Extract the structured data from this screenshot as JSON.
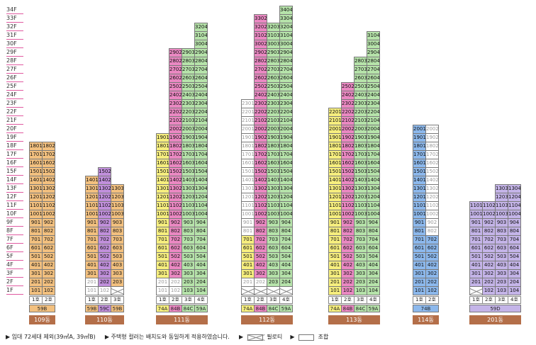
{
  "floors": [
    "1F",
    "2F",
    "3F",
    "4F",
    "5F",
    "6F",
    "7F",
    "8F",
    "9F",
    "10F",
    "11F",
    "12F",
    "13F",
    "14F",
    "15F",
    "16F",
    "17F",
    "18F",
    "19F",
    "20F",
    "21F",
    "22F",
    "23F",
    "24F",
    "25F",
    "26F",
    "27F",
    "28F",
    "29F",
    "30F",
    "31F",
    "32F",
    "33F",
    "34F"
  ],
  "colors": {
    "orange": "#f2c07f",
    "yellow": "#f6ee7e",
    "purple": "#c08fdb",
    "green": "#b6e3aa",
    "pink": "#ea88c2",
    "lavender": "#c4b4e8",
    "blue": "#8cb8ec",
    "white": "#ffffff",
    "building_label": "#b46f49"
  },
  "buildings": [
    {
      "name": "109동",
      "col_labels": [
        "1호",
        "2호"
      ],
      "lines": [
        {
          "color": "orange",
          "top": 18,
          "pilotis": []
        },
        {
          "color": "orange",
          "top": 18,
          "pilotis": []
        }
      ],
      "types": [
        {
          "label": "59B",
          "color": "orange",
          "span": 2
        }
      ]
    },
    {
      "name": "110동",
      "col_labels": [
        "1호",
        "2호",
        "3호"
      ],
      "lines": [
        {
          "color": "orange",
          "top": 14,
          "pilotis": [],
          "dim": [
            1,
            2
          ]
        },
        {
          "color": "purple",
          "top": 15,
          "pilotis": [],
          "dim": [
            1
          ]
        },
        {
          "color": "orange",
          "top": 13,
          "pilotis": [
            1
          ],
          "dim": []
        }
      ],
      "types": [
        {
          "label": "59B",
          "color": "orange",
          "span": 1
        },
        {
          "label": "59C",
          "color": "purple",
          "span": 1
        },
        {
          "label": "59B",
          "color": "orange",
          "span": 1
        }
      ]
    },
    {
      "name": "111동",
      "col_labels": [
        "1호",
        "2호",
        "3호",
        "4호"
      ],
      "lines": [
        {
          "color": "yellow",
          "top": 19,
          "pilotis": [],
          "dim": [
            1,
            2
          ]
        },
        {
          "color": "pink",
          "top": 29,
          "pilotis": [],
          "dim": [
            1,
            2
          ]
        },
        {
          "color": "green",
          "top": 29,
          "pilotis": [],
          "dim": []
        },
        {
          "color": "green",
          "top": 32,
          "pilotis": [],
          "dim": []
        }
      ],
      "types": [
        {
          "label": "74A",
          "color": "yellow",
          "span": 1
        },
        {
          "label": "84B",
          "color": "pink",
          "span": 1
        },
        {
          "label": "84C",
          "color": "green",
          "span": 1
        },
        {
          "label": "59A",
          "color": "green",
          "span": 1
        }
      ]
    },
    {
      "name": "112동",
      "col_labels": [
        "1호",
        "2호",
        "3호",
        "4호"
      ],
      "lines": [
        {
          "color": "yellow",
          "top": 23,
          "pilotis": [
            1
          ],
          "dim": [
            2,
            8,
            9,
            10,
            11,
            12,
            13,
            14,
            15,
            16,
            17,
            18,
            19,
            20,
            21,
            22,
            23
          ]
        },
        {
          "color": "pink",
          "top": 33,
          "pilotis": [
            1
          ],
          "dim": [
            2
          ]
        },
        {
          "color": "green",
          "top": 32,
          "pilotis": [
            1
          ],
          "dim": []
        },
        {
          "color": "green",
          "top": 34,
          "pilotis": [
            1
          ],
          "dim": []
        }
      ],
      "types": [
        {
          "label": "74A",
          "color": "yellow",
          "span": 1
        },
        {
          "label": "84B",
          "color": "pink",
          "span": 1
        },
        {
          "label": "84C",
          "color": "green",
          "span": 1
        },
        {
          "label": "59A",
          "color": "green",
          "span": 1
        }
      ]
    },
    {
      "name": "113동",
      "col_labels": [
        "1호",
        "2호",
        "3호",
        "4호"
      ],
      "lines": [
        {
          "color": "yellow",
          "top": 22,
          "pilotis": [],
          "dim": []
        },
        {
          "color": "pink",
          "top": 25,
          "pilotis": [],
          "dim": []
        },
        {
          "color": "green",
          "top": 28,
          "pilotis": [],
          "dim": []
        },
        {
          "color": "green",
          "top": 31,
          "pilotis": [],
          "dim": []
        }
      ],
      "types": [
        {
          "label": "74A",
          "color": "yellow",
          "span": 1
        },
        {
          "label": "84B",
          "color": "pink",
          "span": 1
        },
        {
          "label": "84C",
          "color": "green",
          "span": 1
        },
        {
          "label": "59A",
          "color": "green",
          "span": 1
        }
      ]
    },
    {
      "name": "114동",
      "col_labels": [
        "1호",
        "2호"
      ],
      "lines": [
        {
          "color": "blue",
          "top": 20,
          "pilotis": [],
          "dim": []
        },
        {
          "color": "blue",
          "top": 20,
          "pilotis": [],
          "dim": [
            8,
            9,
            10,
            11,
            12,
            13,
            14,
            15,
            16,
            17,
            18,
            19,
            20
          ]
        }
      ],
      "types": [
        {
          "label": "74B",
          "color": "blue",
          "span": 2
        }
      ]
    },
    {
      "name": "201동",
      "col_labels": [
        "1호",
        "2호",
        "3호",
        "4호"
      ],
      "lines": [
        {
          "color": "lavender",
          "top": 11,
          "pilotis": [
            1
          ],
          "dim": []
        },
        {
          "color": "lavender",
          "top": 11,
          "pilotis": [],
          "dim": []
        },
        {
          "color": "lavender",
          "top": 13,
          "pilotis": [],
          "dim": []
        },
        {
          "color": "lavender",
          "top": 13,
          "pilotis": [],
          "dim": []
        }
      ],
      "types": [
        {
          "label": "59D",
          "color": "lavender",
          "span": 4
        }
      ]
    }
  ],
  "legend": {
    "rental_note": "▶ 임대 72세대 제외(39㎡A, 39㎡B)",
    "highlight_note": "▶ 주택형 컬러는 배치도와 동일하게 적용하였습니다.",
    "pilotis_marker": "▶",
    "pilotis_label": "필로티",
    "union_marker": "▶",
    "union_label": "조합"
  }
}
